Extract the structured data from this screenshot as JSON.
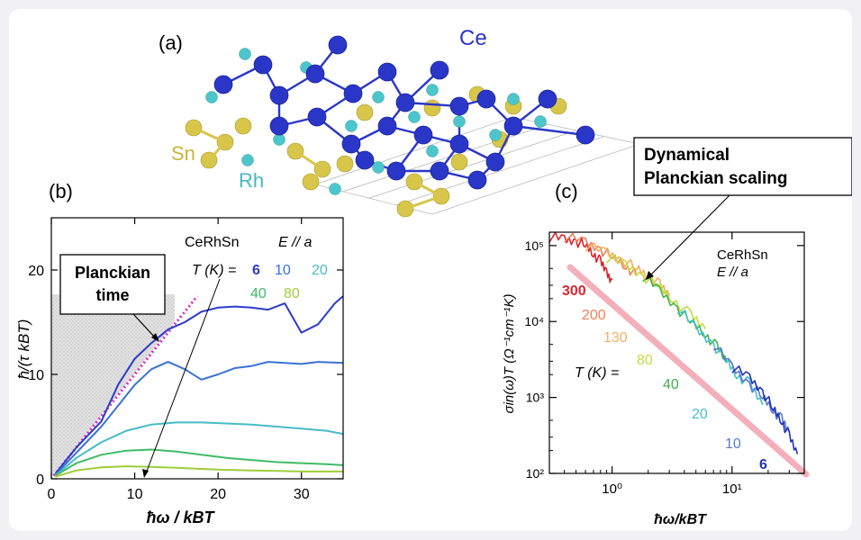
{
  "panel_a": {
    "label": "(a)",
    "atoms": {
      "ce": "Ce",
      "sn": "Sn",
      "rh": "Rh"
    },
    "colors": {
      "ce": "#2a36c8",
      "sn": "#d8c64a",
      "rh": "#4cc6cc"
    }
  },
  "panel_b": {
    "label": "(b)",
    "annotation_box": {
      "line1": "Planckian",
      "line2": "time"
    },
    "material": "CeRhSn",
    "orientation": "E // a",
    "temp_prefix": "T (K) =",
    "temps": [
      "6",
      "10",
      "20",
      "40",
      "80"
    ],
    "ylabel": "ħ/(τ kBT)",
    "xlabel": "ħω / kBT"
  },
  "panel_c": {
    "label": "(c)",
    "callout": {
      "line1": "Dynamical",
      "line2": "Planckian scaling"
    },
    "material": "CeRhSn",
    "orientation": "E // a",
    "temp_prefix": "T (K) =",
    "ylabel": "σin(ω)T (Ω⁻¹cm⁻¹K)",
    "xlabel": "ħω/kBT"
  },
  "chart_data": [
    {
      "type": "line",
      "x_range": [
        0,
        35
      ],
      "ylim": [
        0,
        25
      ],
      "x_ticks": [
        "0",
        "10",
        "20",
        "30"
      ],
      "y_ticks": [
        "0",
        "10",
        "20"
      ],
      "series": [
        {
          "name": "6",
          "color": "#2b3bcc",
          "x": [
            0.5,
            3,
            6,
            8,
            10,
            12,
            14,
            16,
            18,
            20,
            22,
            24,
            26,
            28,
            30,
            32,
            34,
            35
          ],
          "y": [
            0.5,
            3,
            5.5,
            9,
            11.5,
            13,
            14.3,
            15,
            16,
            16.4,
            16.5,
            16.4,
            16.2,
            16.8,
            14,
            14.8,
            16.8,
            17.5
          ]
        },
        {
          "name": "10",
          "color": "#3a72d4",
          "x": [
            0.5,
            3,
            6,
            8,
            10,
            12,
            14,
            16,
            18,
            20,
            22,
            24,
            26,
            28,
            30,
            32,
            35
          ],
          "y": [
            0.4,
            2.5,
            5,
            7,
            9,
            10.5,
            11.2,
            10.5,
            9.5,
            10,
            10.6,
            10.8,
            11.2,
            11.1,
            11,
            11.2,
            11.1
          ]
        },
        {
          "name": "20",
          "color": "#46bcc6",
          "x": [
            0.5,
            3,
            6,
            9,
            12,
            15,
            18,
            21,
            24,
            27,
            30,
            33,
            35
          ],
          "y": [
            0.3,
            2,
            3.5,
            4.6,
            5.2,
            5.4,
            5.4,
            5.3,
            5.2,
            5,
            4.8,
            4.6,
            4.3
          ]
        },
        {
          "name": "40",
          "color": "#3fbb67",
          "x": [
            0.5,
            3,
            6,
            9,
            12,
            15,
            18,
            21,
            24,
            27,
            30,
            33,
            35
          ],
          "y": [
            0.3,
            1.5,
            2.3,
            2.7,
            2.8,
            2.6,
            2.3,
            2,
            1.8,
            1.6,
            1.5,
            1.4,
            1.3
          ]
        },
        {
          "name": "80",
          "color": "#9fcd3c",
          "x": [
            0.5,
            3,
            6,
            9,
            12,
            15,
            18,
            21,
            24,
            27,
            30,
            33,
            35
          ],
          "y": [
            0.2,
            0.8,
            1.1,
            1.2,
            1.15,
            1.05,
            0.95,
            0.85,
            0.8,
            0.75,
            0.7,
            0.7,
            0.7
          ]
        }
      ]
    },
    {
      "type": "line",
      "x_scale": "log",
      "y_scale": "log",
      "x_range": [
        0.3,
        40
      ],
      "ylim": [
        100,
        150000
      ],
      "x_ticks": [
        "10⁰",
        "10¹"
      ],
      "y_ticks": [
        "10²",
        "10³",
        "10⁴",
        "10⁵"
      ],
      "series": [
        {
          "name": "300",
          "color": "#d8262e",
          "x": [
            0.3,
            0.4,
            0.5,
            0.6,
            0.7,
            0.8,
            0.9,
            1.0
          ],
          "y": [
            130000,
            120000,
            115000,
            100000,
            80000,
            60000,
            45000,
            35000
          ]
        },
        {
          "name": "200",
          "color": "#f0805a",
          "x": [
            0.4,
            0.6,
            0.8,
            1.0,
            1.3,
            1.6
          ],
          "y": [
            130000,
            110000,
            90000,
            70000,
            55000,
            40000
          ]
        },
        {
          "name": "130",
          "color": "#f2b05e",
          "x": [
            0.6,
            0.9,
            1.2,
            1.6,
            2.0,
            2.5,
            3.0
          ],
          "y": [
            100000,
            80000,
            65000,
            50000,
            40000,
            30000,
            22000
          ]
        },
        {
          "name": "80",
          "color": "#c5db3e",
          "x": [
            0.9,
            1.3,
            1.8,
            2.4,
            3.2,
            4.5,
            6.0
          ],
          "y": [
            70000,
            55000,
            40000,
            30000,
            20000,
            12000,
            8000
          ]
        },
        {
          "name": "40",
          "color": "#3fb24a",
          "x": [
            1.8,
            2.5,
            3.5,
            4.5,
            6,
            7.5,
            9
          ],
          "y": [
            40000,
            25000,
            15000,
            10000,
            7000,
            4500,
            3000
          ]
        },
        {
          "name": "20",
          "color": "#46c0c8",
          "x": [
            3.5,
            5,
            7,
            9,
            11,
            14,
            18
          ],
          "y": [
            15000,
            8000,
            5000,
            3000,
            2000,
            1500,
            800
          ]
        },
        {
          "name": "10",
          "color": "#5b78cf",
          "x": [
            7,
            10,
            14,
            18,
            22,
            26,
            30
          ],
          "y": [
            5000,
            2500,
            1500,
            1000,
            700,
            500,
            350
          ]
        },
        {
          "name": "6",
          "color": "#2233b8",
          "x": [
            10,
            14,
            18,
            22,
            26,
            30,
            35
          ],
          "y": [
            2500,
            1800,
            1200,
            700,
            500,
            300,
            180
          ]
        }
      ]
    }
  ]
}
